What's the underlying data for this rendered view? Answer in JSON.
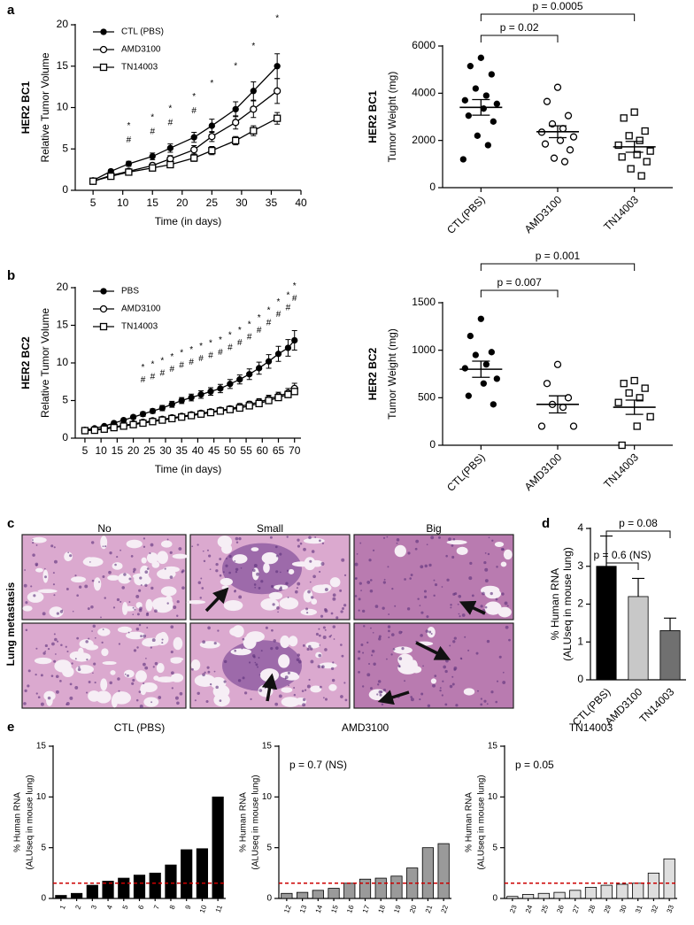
{
  "panel_labels": [
    "a",
    "b",
    "c",
    "d",
    "e"
  ],
  "lung_panel": {
    "row_label": "Lung metastasis",
    "columns": [
      "No",
      "Small",
      "Big"
    ]
  },
  "chart_data": [
    {
      "type": "line",
      "title": "HER2 BC1",
      "ylabel": "Relative Tumor Volume",
      "xlabel": "Time (in days)",
      "x": [
        5,
        8,
        11,
        15,
        18,
        22,
        25,
        29,
        32,
        36
      ],
      "series": [
        {
          "name": "CTL (PBS)",
          "color": "#000000",
          "marker": "filled-circle",
          "values": [
            1.2,
            2.3,
            3.2,
            4.1,
            5.1,
            6.4,
            7.8,
            9.8,
            12,
            15
          ],
          "errors": [
            0.1,
            0.2,
            0.3,
            0.4,
            0.5,
            0.6,
            0.8,
            0.9,
            1.1,
            1.5
          ]
        },
        {
          "name": "AMD3100",
          "color": "#000000",
          "marker": "open-circle",
          "values": [
            1.1,
            1.8,
            2.3,
            3,
            3.8,
            4.9,
            6.5,
            8.2,
            9.8,
            12
          ],
          "errors": [
            0.1,
            0.2,
            0.2,
            0.3,
            0.4,
            0.5,
            0.6,
            0.8,
            1,
            1.5
          ]
        },
        {
          "name": "TN14003",
          "color": "#000000",
          "marker": "open-square",
          "values": [
            1.1,
            1.7,
            2.2,
            2.7,
            3.1,
            3.9,
            4.8,
            6,
            7.2,
            8.7
          ],
          "errors": [
            0.1,
            0.1,
            0.2,
            0.2,
            0.3,
            0.4,
            0.5,
            0.5,
            0.6,
            0.7
          ]
        }
      ],
      "xlim": [
        2,
        40
      ],
      "xticks": [
        5,
        10,
        15,
        20,
        25,
        30,
        35,
        40
      ],
      "ylim": [
        0,
        20
      ],
      "yticks": [
        0,
        5,
        10,
        15,
        20
      ],
      "significance": [
        {
          "label": "*",
          "x": [
            11,
            15,
            18,
            22,
            25,
            29,
            32,
            36
          ]
        },
        {
          "label": "#",
          "x": [
            11,
            15,
            18,
            22
          ]
        }
      ]
    },
    {
      "type": "dot",
      "title": "HER2 BC1",
      "ylabel": "Tumor Weight (mg)",
      "categories": [
        "CTL(PBS)",
        "AMD3100",
        "TN14003"
      ],
      "markers": [
        "filled-circle",
        "open-circle",
        "open-square"
      ],
      "points": [
        [
          5500,
          5150,
          4800,
          4200,
          3900,
          3700,
          3550,
          3350,
          3050,
          2800,
          2200,
          1800,
          1200
        ],
        [
          4250,
          3650,
          3050,
          2700,
          2500,
          2350,
          2150,
          2000,
          1850,
          1600,
          1250,
          1100
        ],
        [
          3200,
          2950,
          2400,
          2200,
          2000,
          1800,
          1550,
          1400,
          1300,
          1100,
          800,
          500
        ]
      ],
      "means": [
        3400,
        2370,
        1730
      ],
      "sems": [
        330,
        250,
        230
      ],
      "ylim": [
        0,
        6000
      ],
      "yticks": [
        0,
        2000,
        4000,
        6000
      ],
      "p_values": [
        "p = 0.02",
        "p = 0.0005"
      ]
    },
    {
      "type": "line",
      "title": "HER2 BC2",
      "ylabel": "Relative Tumor Volume",
      "xlabel": "Time (in days)",
      "x": [
        5,
        8,
        11,
        14,
        17,
        20,
        23,
        26,
        29,
        32,
        35,
        38,
        41,
        44,
        47,
        50,
        53,
        56,
        59,
        62,
        65,
        68,
        70
      ],
      "series": [
        {
          "name": "PBS",
          "color": "#000000",
          "marker": "filled-circle",
          "values": [
            1.1,
            1.3,
            1.6,
            2,
            2.4,
            2.8,
            3.2,
            3.6,
            4,
            4.5,
            5,
            5.4,
            5.8,
            6.2,
            6.6,
            7.2,
            7.8,
            8.5,
            9.3,
            10.2,
            11.2,
            12,
            13
          ],
          "errors": [
            0.1,
            0.1,
            0.15,
            0.2,
            0.2,
            0.25,
            0.3,
            0.3,
            0.35,
            0.4,
            0.4,
            0.45,
            0.5,
            0.5,
            0.55,
            0.6,
            0.6,
            0.7,
            0.8,
            0.9,
            1,
            1.1,
            1.3
          ]
        },
        {
          "name": "AMD3100",
          "color": "#000000",
          "marker": "open-circle",
          "values": [
            1,
            1.1,
            1.3,
            1.5,
            1.7,
            1.9,
            2.1,
            2.3,
            2.5,
            2.7,
            2.9,
            3.1,
            3.3,
            3.5,
            3.7,
            3.9,
            4.2,
            4.5,
            4.8,
            5.2,
            5.6,
            6,
            6.6
          ],
          "errors": [
            0.1,
            0.1,
            0.1,
            0.1,
            0.15,
            0.15,
            0.2,
            0.2,
            0.2,
            0.25,
            0.25,
            0.3,
            0.3,
            0.3,
            0.35,
            0.35,
            0.4,
            0.4,
            0.45,
            0.5,
            0.5,
            0.6,
            0.7
          ]
        },
        {
          "name": "TN14003",
          "color": "#000000",
          "marker": "open-square",
          "values": [
            1,
            1.05,
            1.2,
            1.4,
            1.6,
            1.8,
            2,
            2.2,
            2.4,
            2.6,
            2.8,
            3,
            3.2,
            3.4,
            3.6,
            3.8,
            4,
            4.3,
            4.6,
            5,
            5.4,
            5.8,
            6.2
          ]
        }
      ],
      "xlim": [
        2,
        72
      ],
      "xticks": [
        5,
        10,
        15,
        20,
        25,
        30,
        35,
        40,
        45,
        50,
        55,
        60,
        65,
        70
      ],
      "ylim": [
        0,
        20
      ],
      "yticks": [
        0,
        5,
        10,
        15,
        20
      ],
      "significance": [
        {
          "label": "*",
          "x": [
            23,
            26,
            29,
            32,
            35,
            38,
            41,
            44,
            47,
            50,
            53,
            56,
            59,
            62,
            65,
            68,
            70
          ]
        },
        {
          "label": "#",
          "x": [
            23,
            26,
            29,
            32,
            35,
            38,
            41,
            44,
            47,
            50,
            53,
            56,
            59,
            62,
            65,
            68,
            70
          ]
        }
      ]
    },
    {
      "type": "dot",
      "title": "HER2 BC2",
      "ylabel": "Tumor Weight (mg)",
      "categories": [
        "CTL(PBS)",
        "AMD3100",
        "TN14003"
      ],
      "markers": [
        "filled-circle",
        "open-circle",
        "open-square"
      ],
      "points": [
        [
          1330,
          1150,
          980,
          950,
          850,
          810,
          700,
          650,
          520,
          430
        ],
        [
          850,
          650,
          500,
          430,
          400,
          200,
          200
        ],
        [
          680,
          650,
          600,
          550,
          500,
          450,
          300,
          200,
          0
        ]
      ],
      "means": [
        800,
        430,
        400
      ],
      "sems": [
        85,
        90,
        75
      ],
      "ylim": [
        0,
        1500
      ],
      "yticks": [
        0,
        500,
        1000,
        1500
      ],
      "p_values": [
        "p = 0.007",
        "p = 0.001"
      ]
    },
    {
      "type": "bar",
      "ylabel": [
        "% Human RNA",
        "(ALUseq in mouse lung)"
      ],
      "categories": [
        "CTL(PBS)",
        "AMD3100",
        "TN14003"
      ],
      "values": [
        3,
        2.2,
        1.3
      ],
      "errors": [
        0.8,
        0.48,
        0.33
      ],
      "colors": [
        "#000000",
        "#c8c8c8",
        "#707070"
      ],
      "ylim": [
        0,
        4
      ],
      "yticks": [
        0,
        1,
        2,
        3,
        4
      ],
      "p_values": [
        "p = 0.6 (NS)",
        "p = 0.08"
      ]
    },
    {
      "type": "bar",
      "title": "CTL (PBS)",
      "ylabel": [
        "% Human RNA",
        "(ALUseq in mouse lung)"
      ],
      "categories": [
        "1",
        "2",
        "3",
        "4",
        "5",
        "6",
        "7",
        "8",
        "9",
        "10",
        "11"
      ],
      "values": [
        0.3,
        0.5,
        1.3,
        1.7,
        2,
        2.3,
        2.5,
        3.3,
        4.8,
        4.9,
        10
      ],
      "color": "#000000",
      "ylim": [
        0,
        15
      ],
      "yticks": [
        0,
        5,
        10,
        15
      ],
      "threshold": 1.5,
      "threshold_color": "#cc0000"
    },
    {
      "type": "bar",
      "title": "AMD3100",
      "ylabel": [
        "% Human RNA",
        "(ALUseq in mouse lung)"
      ],
      "categories": [
        "12",
        "13",
        "14",
        "15",
        "16",
        "17",
        "18",
        "19",
        "20",
        "21",
        "22"
      ],
      "values": [
        0.5,
        0.6,
        0.8,
        1,
        1.5,
        1.9,
        2,
        2.2,
        3,
        5,
        5.4
      ],
      "color": "#9a9a9a",
      "ylim": [
        0,
        15
      ],
      "yticks": [
        0,
        5,
        10,
        15
      ],
      "threshold": 1.5,
      "threshold_color": "#cc0000",
      "annotation": "p = 0.7 (NS)"
    },
    {
      "type": "bar",
      "title": "TN14003",
      "ylabel": [
        "% Human RNA",
        "(ALUseq in mouse lung)"
      ],
      "categories": [
        "23",
        "24",
        "25",
        "26",
        "27",
        "28",
        "29",
        "30",
        "31",
        "32",
        "33"
      ],
      "values": [
        0.2,
        0.4,
        0.5,
        0.6,
        0.8,
        1.1,
        1.3,
        1.4,
        1.5,
        2.5,
        3.9
      ],
      "color": "#dedede",
      "ylim": [
        0,
        15
      ],
      "yticks": [
        0,
        5,
        10,
        15
      ],
      "threshold": 1.5,
      "threshold_color": "#cc0000",
      "annotation": "p = 0.05"
    }
  ]
}
